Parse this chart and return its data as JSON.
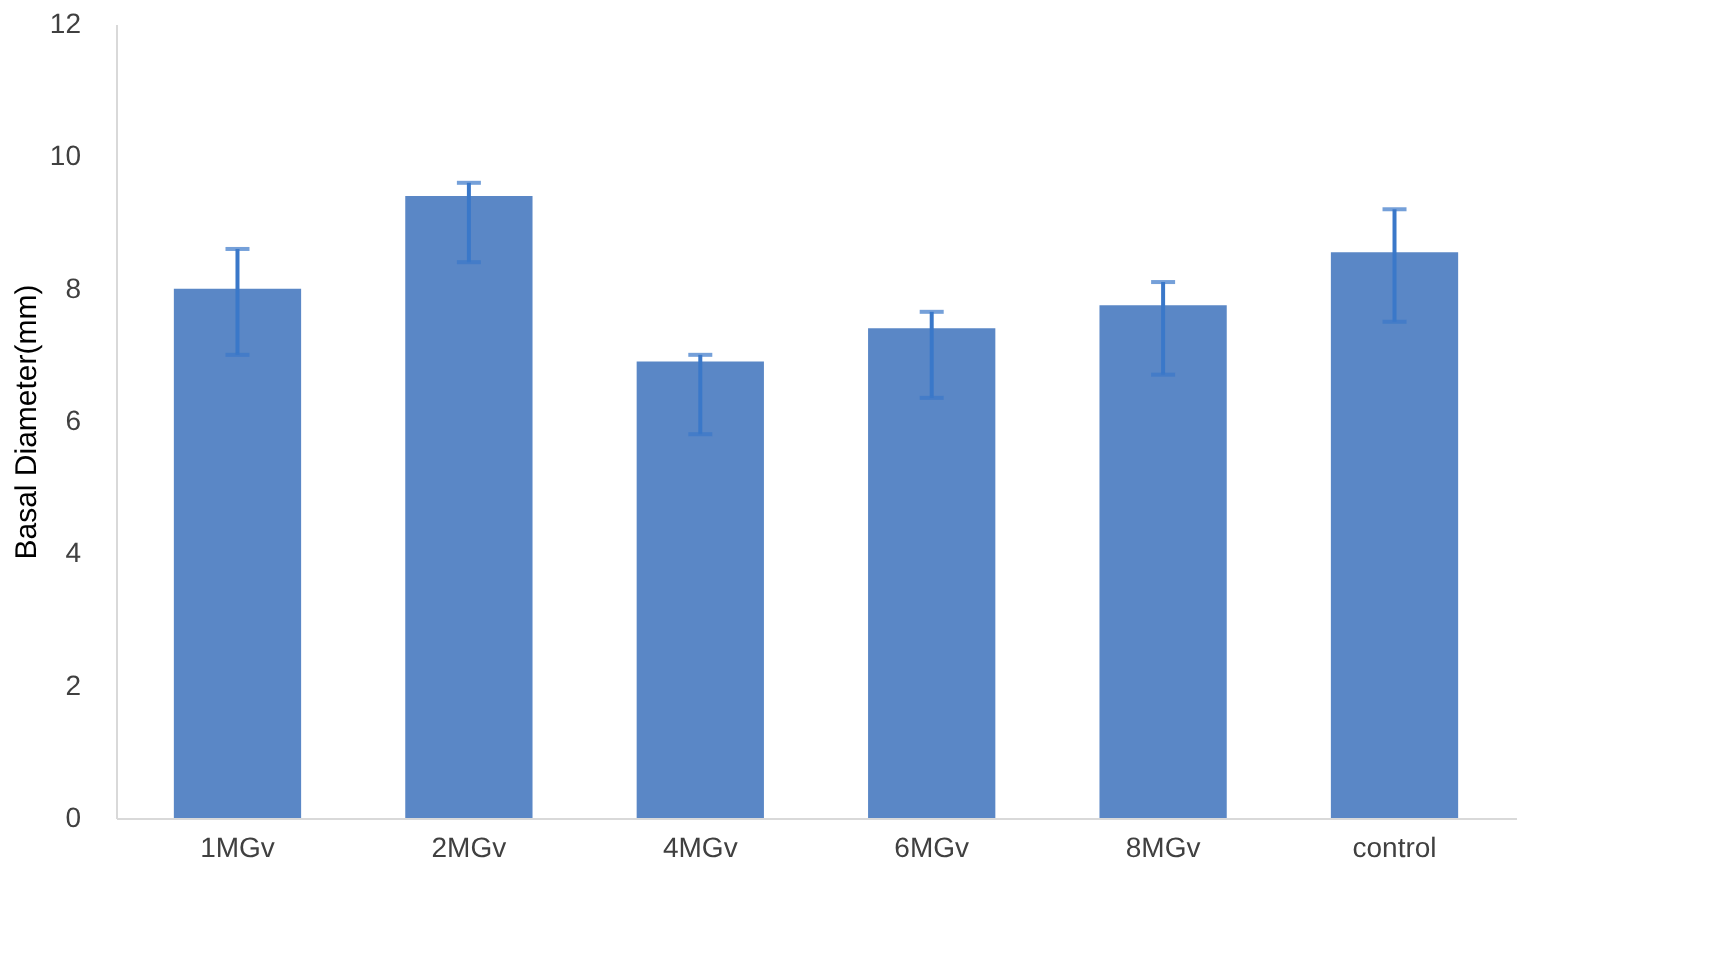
{
  "chart_data": {
    "type": "bar",
    "ylabel": "Basal Diameter(mm)",
    "categories": [
      "1MGv",
      "2MGv",
      "4MGv",
      "6MGv",
      "8MGv",
      "control"
    ],
    "values": [
      8.0,
      9.4,
      6.9,
      7.4,
      7.75,
      8.55
    ],
    "errors": [
      [
        7.0,
        8.6
      ],
      [
        8.4,
        9.6
      ],
      [
        5.8,
        7.0
      ],
      [
        6.35,
        7.65
      ],
      [
        6.7,
        8.1
      ],
      [
        7.5,
        9.2
      ]
    ],
    "color": "#5a87c6",
    "ylim": [
      0,
      12
    ],
    "yticks": [
      0,
      2,
      4,
      6,
      8,
      10,
      12
    ],
    "grid": false
  }
}
